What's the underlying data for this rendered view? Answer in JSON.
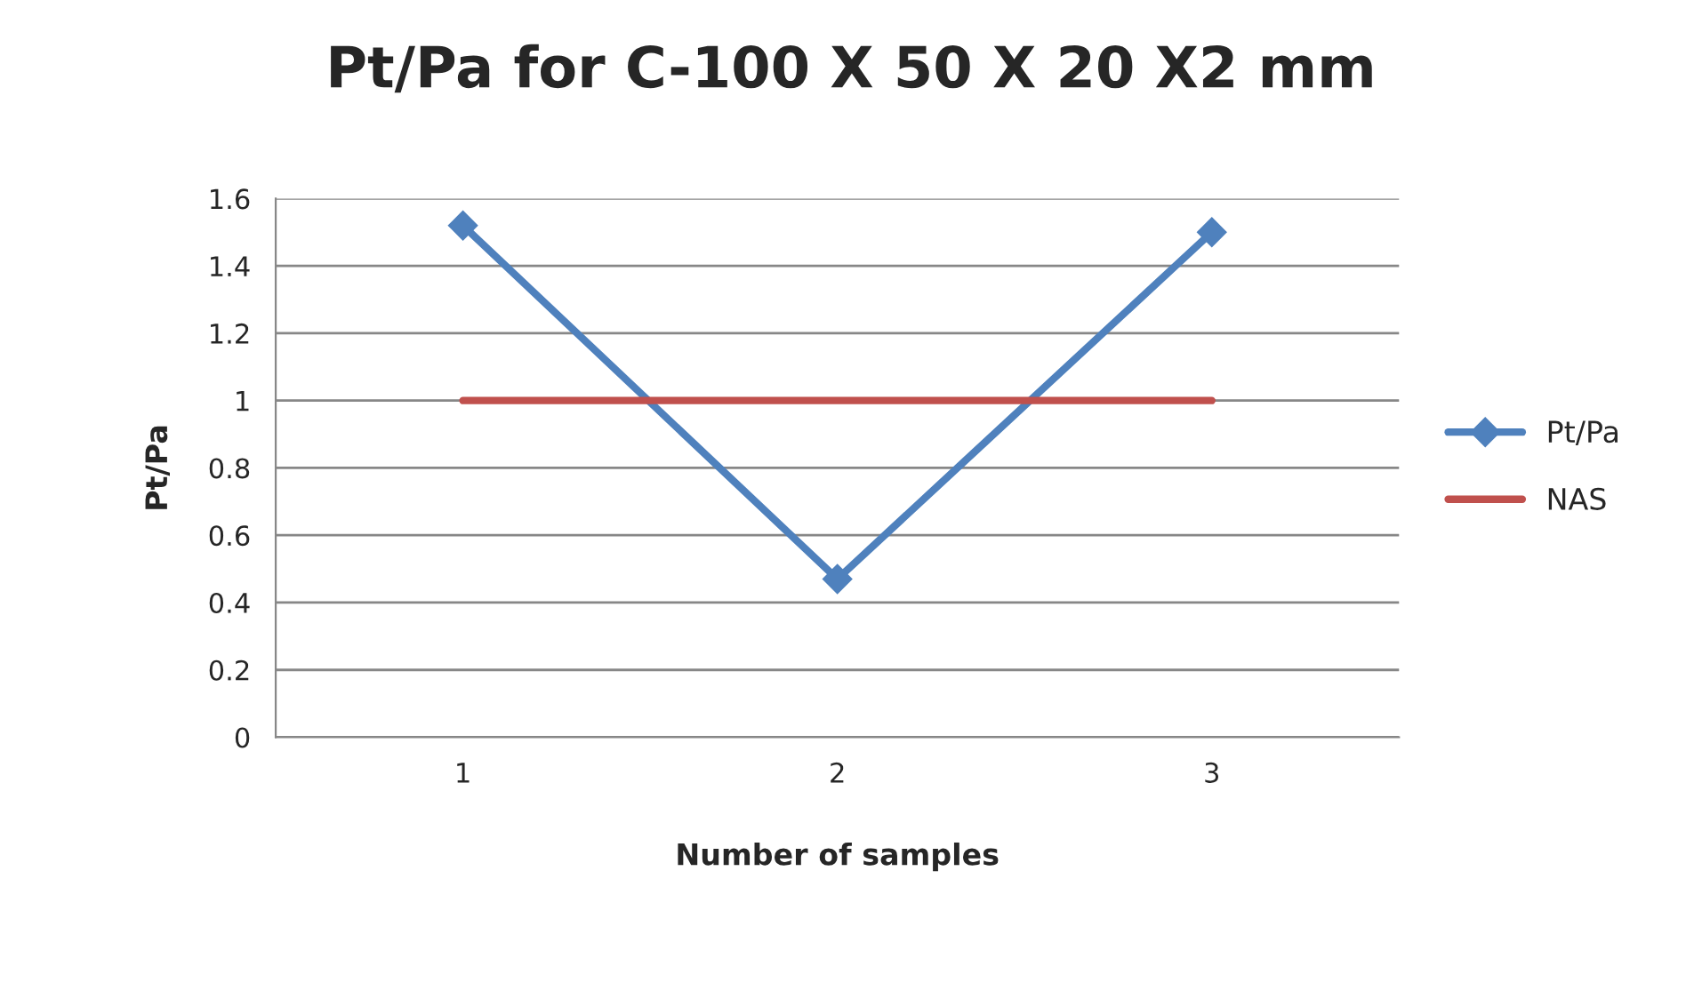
{
  "chart_data": {
    "type": "line",
    "title": "Pt/Pa for C-100 X 50 X 20 X2 mm",
    "xlabel": "Number of samples",
    "ylabel": "Pt/Pa",
    "categories": [
      "1",
      "2",
      "3"
    ],
    "series": [
      {
        "name": "Pt/Pa",
        "color": "#4f81bd",
        "values": [
          1.52,
          0.47,
          1.5
        ],
        "marker": "diamond"
      },
      {
        "name": "NAS",
        "color": "#c0504d",
        "values": [
          1,
          1,
          1
        ],
        "marker": "none"
      }
    ],
    "ylim": [
      0,
      1.6
    ],
    "yticks": [
      0,
      0.2,
      0.4,
      0.6,
      0.8,
      1,
      1.2,
      1.4,
      1.6
    ],
    "grid": "y",
    "legend": "right",
    "line_style": "solid"
  }
}
